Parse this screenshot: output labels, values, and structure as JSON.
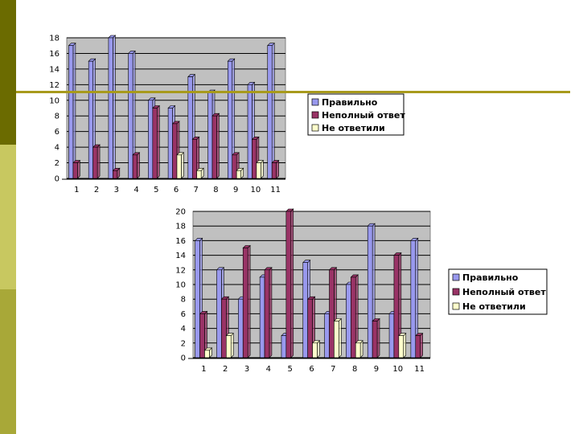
{
  "theme": {
    "side_colors": [
      "#6b6b00",
      "#c8c860",
      "#a8a838"
    ],
    "rule_color": "#a89a1c",
    "plot_bg": "#c0c0c0",
    "series_colors": [
      "#9999ee",
      "#993366",
      "#ffffcc"
    ]
  },
  "chart_data": [
    {
      "type": "bar",
      "categories": [
        "1",
        "2",
        "3",
        "4",
        "5",
        "6",
        "7",
        "8",
        "9",
        "10",
        "11"
      ],
      "ylim": [
        0,
        18
      ],
      "yticks": [
        "0",
        "2",
        "4",
        "6",
        "8",
        "10",
        "12",
        "14",
        "16",
        "18"
      ],
      "grid": true,
      "legend_position": "right",
      "series": [
        {
          "name": "Правильно",
          "values": [
            17,
            15,
            18,
            16,
            10,
            9,
            13,
            11,
            15,
            12,
            17
          ]
        },
        {
          "name": "Неполный ответ",
          "values": [
            2,
            4,
            1,
            3,
            9,
            7,
            5,
            8,
            3,
            5,
            2
          ]
        },
        {
          "name": "Не ответили",
          "values": [
            0,
            0,
            0,
            0,
            0,
            3,
            1,
            0,
            1,
            2,
            0
          ]
        }
      ]
    },
    {
      "type": "bar",
      "categories": [
        "1",
        "2",
        "3",
        "4",
        "5",
        "6",
        "7",
        "8",
        "9",
        "10",
        "11"
      ],
      "ylim": [
        0,
        20
      ],
      "yticks": [
        "0",
        "2",
        "4",
        "6",
        "8",
        "10",
        "12",
        "14",
        "16",
        "18",
        "20"
      ],
      "grid": true,
      "legend_position": "right",
      "series": [
        {
          "name": "Правильно",
          "values": [
            16,
            12,
            8,
            11,
            3,
            13,
            6,
            10,
            18,
            6,
            16
          ]
        },
        {
          "name": "Неполный ответ",
          "values": [
            6,
            8,
            15,
            12,
            20,
            8,
            12,
            11,
            5,
            14,
            3
          ]
        },
        {
          "name": "Не ответили",
          "values": [
            1,
            3,
            0,
            0,
            0,
            2,
            5,
            2,
            0,
            3,
            0
          ]
        }
      ]
    }
  ]
}
